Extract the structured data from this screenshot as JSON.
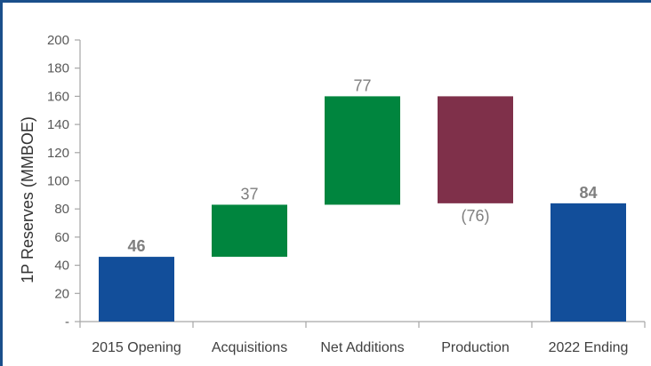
{
  "chart_data": {
    "type": "bar",
    "subtype": "waterfall",
    "ylabel": "1P Reserves (MMBOE)",
    "ylim": [
      0,
      200
    ],
    "yticks": [
      "-",
      "20",
      "40",
      "60",
      "80",
      "100",
      "120",
      "140",
      "160",
      "180",
      "200"
    ],
    "categories": [
      "2015 Opening",
      "Acquisitions",
      "Net Additions",
      "Production",
      "2022 Ending"
    ],
    "bars": [
      {
        "category": "2015 Opening",
        "start": 0,
        "end": 46,
        "label": "46",
        "bold": true,
        "color": "#124e9a",
        "label_pos": "above"
      },
      {
        "category": "Acquisitions",
        "start": 46,
        "end": 83,
        "label": "37",
        "bold": false,
        "color": "#00853e",
        "label_pos": "above"
      },
      {
        "category": "Net Additions",
        "start": 83,
        "end": 160,
        "label": "77",
        "bold": false,
        "color": "#00853e",
        "label_pos": "above"
      },
      {
        "category": "Production",
        "start": 84,
        "end": 160,
        "label": "(76)",
        "bold": false,
        "color": "#7f304a",
        "label_pos": "below"
      },
      {
        "category": "2022 Ending",
        "start": 0,
        "end": 84,
        "label": "84",
        "bold": true,
        "color": "#124e9a",
        "label_pos": "above"
      }
    ],
    "grid": false,
    "legend": "none"
  }
}
